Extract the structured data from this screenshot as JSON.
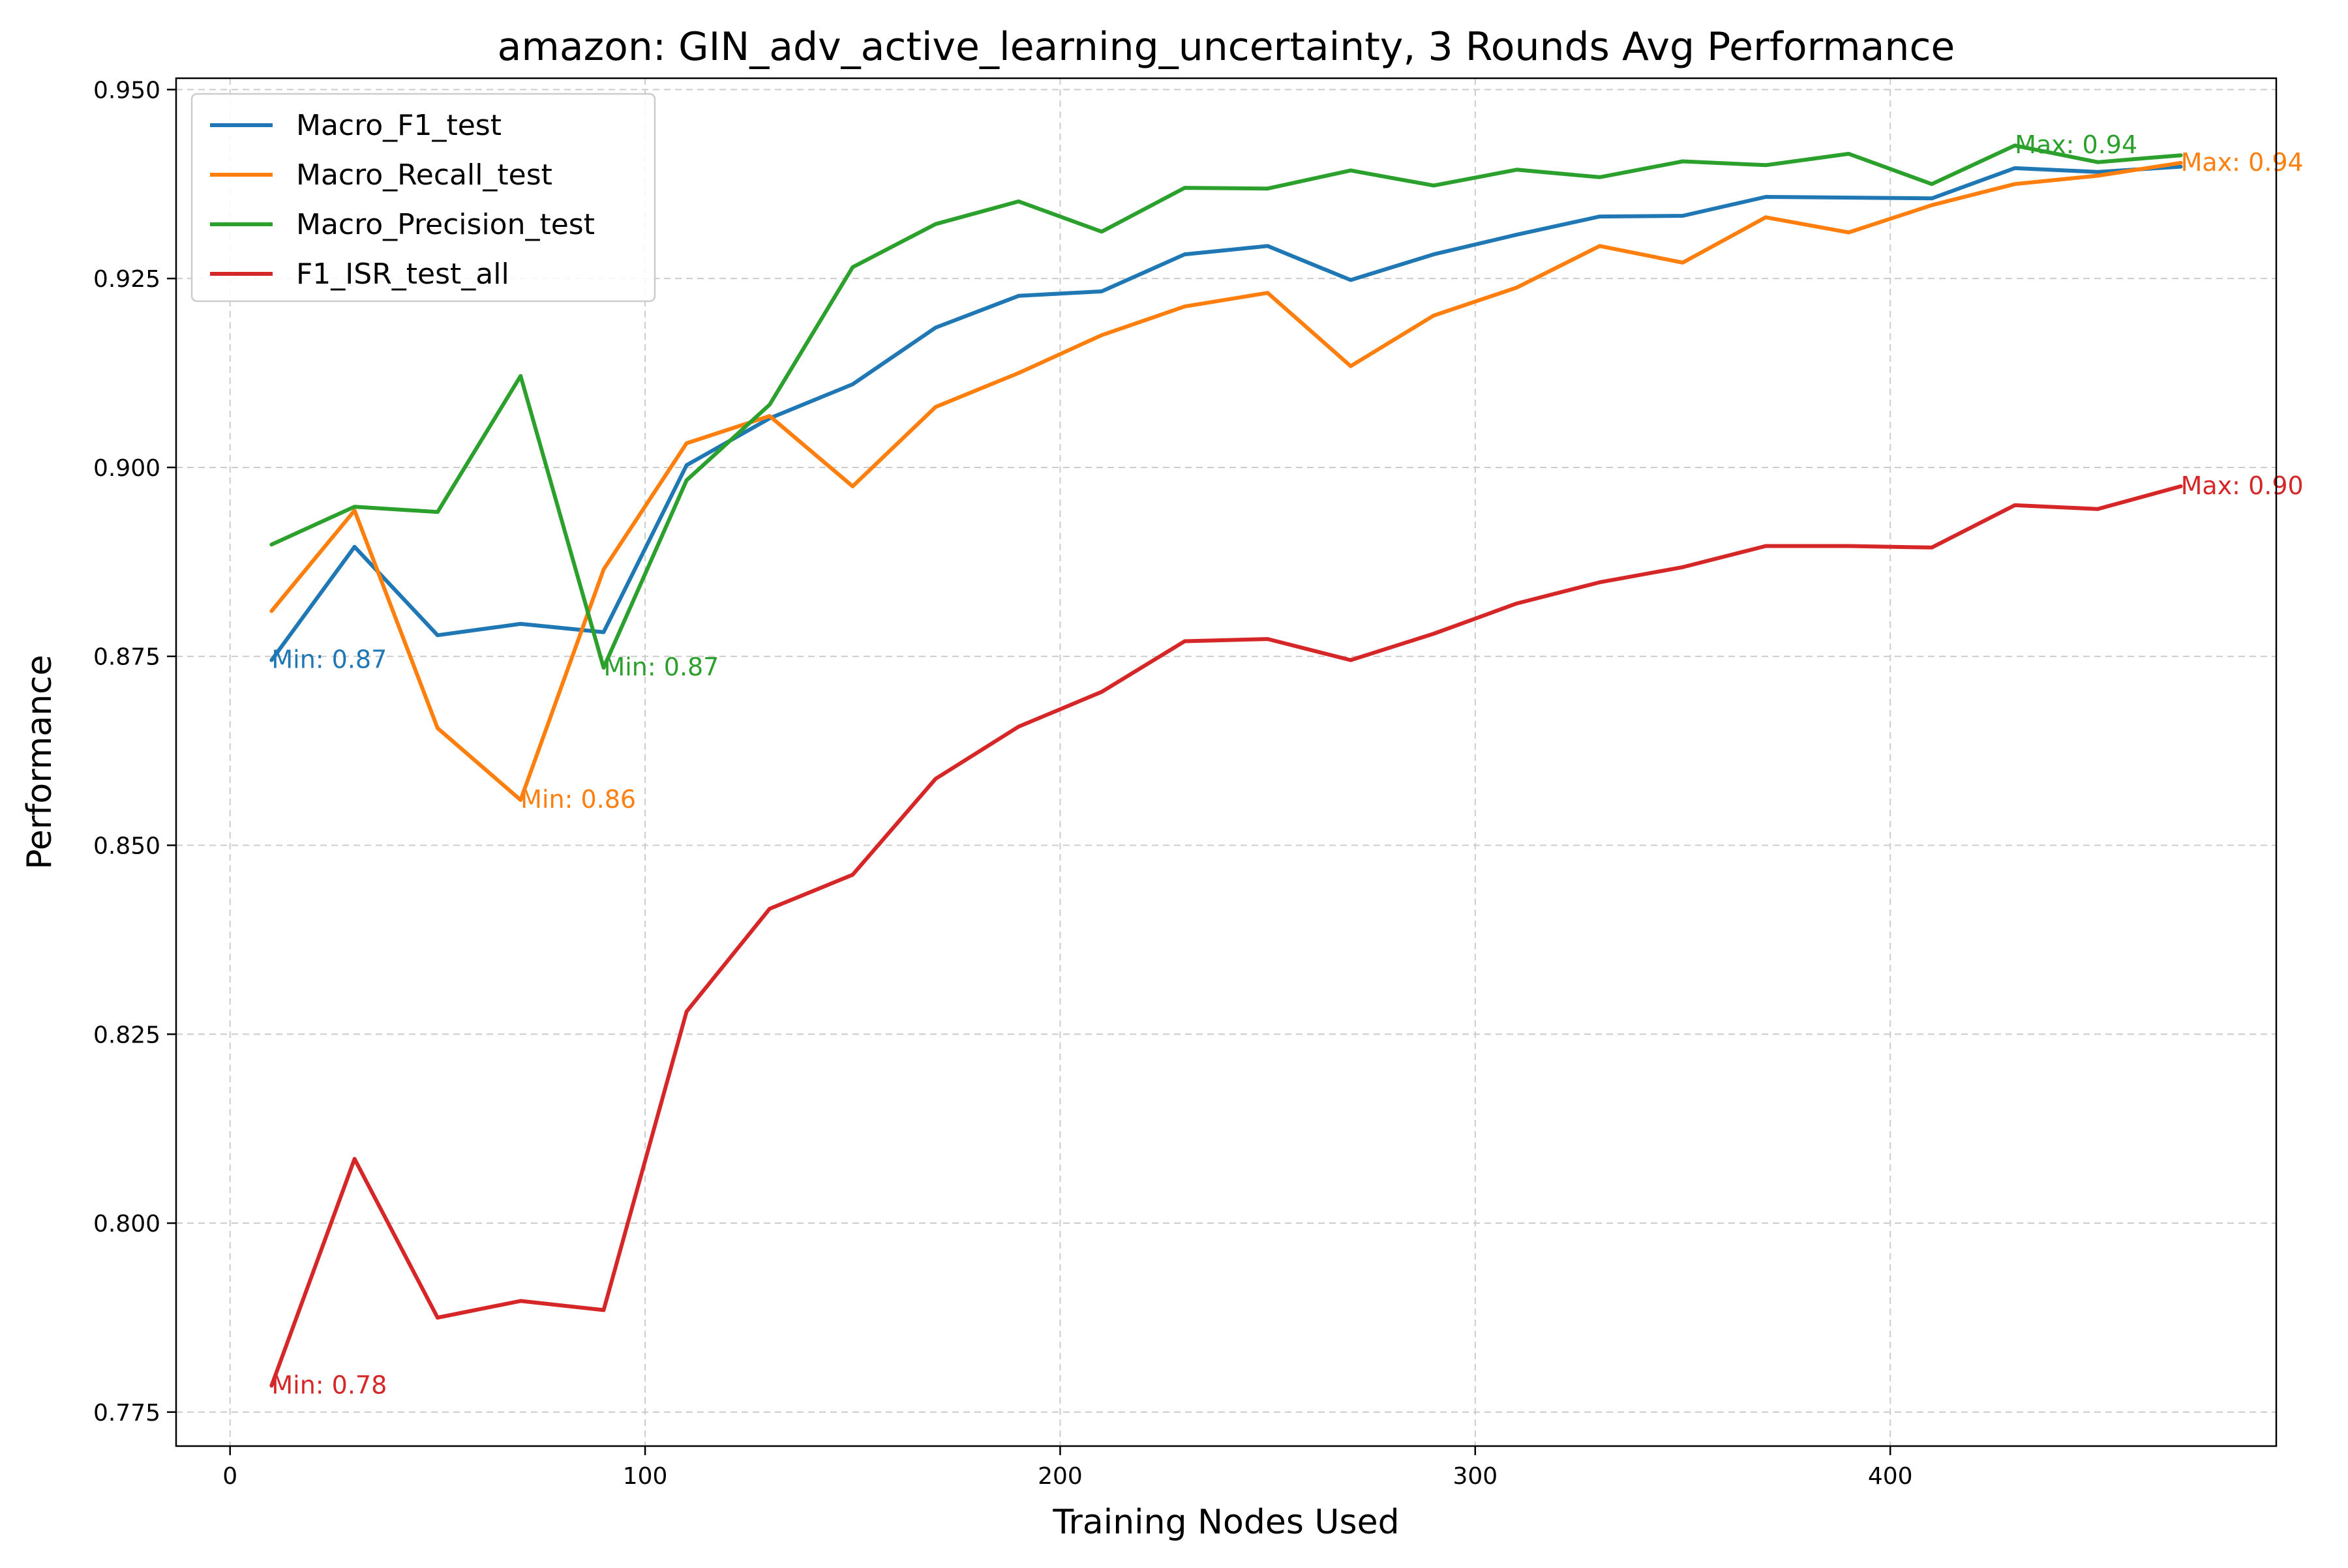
{
  "chart_data": {
    "type": "line",
    "title": "amazon: GIN_adv_active_learning_uncertainty, 3 Rounds Avg Performance",
    "xlabel": "Training Nodes Used",
    "ylabel": "Performance",
    "xlim": [
      -13,
      493
    ],
    "ylim": [
      0.7705,
      0.9515
    ],
    "xticks": [
      0,
      100,
      200,
      300,
      400
    ],
    "xtick_labels": [
      "0",
      "100",
      "200",
      "300",
      "400"
    ],
    "yticks": [
      0.775,
      0.8,
      0.825,
      0.85,
      0.875,
      0.9,
      0.925,
      0.95
    ],
    "ytick_labels": [
      "0.775",
      "0.800",
      "0.825",
      "0.850",
      "0.875",
      "0.900",
      "0.925",
      "0.950"
    ],
    "grid": true,
    "legend_position": "top-left",
    "x": [
      10,
      30,
      50,
      70,
      90,
      110,
      130,
      150,
      170,
      190,
      210,
      230,
      250,
      270,
      290,
      310,
      330,
      350,
      370,
      390,
      410,
      430,
      450,
      470
    ],
    "series": [
      {
        "name": "Macro_F1_test",
        "color": "#1f77b4",
        "values": [
          0.8745,
          0.8895,
          0.8778,
          0.8793,
          0.8782,
          0.9003,
          0.9065,
          0.911,
          0.9185,
          0.9227,
          0.9233,
          0.9282,
          0.9293,
          0.9248,
          0.9282,
          0.9308,
          0.9332,
          0.9333,
          0.9358,
          0.9357,
          0.9356,
          0.9396,
          0.9391,
          0.9398
        ]
      },
      {
        "name": "Macro_Recall_test",
        "color": "#ff7f0e",
        "values": [
          0.881,
          0.8943,
          0.8655,
          0.856,
          0.8865,
          0.9032,
          0.9068,
          0.8975,
          0.908,
          0.9125,
          0.9175,
          0.9213,
          0.9231,
          0.9134,
          0.9201,
          0.9238,
          0.9293,
          0.9271,
          0.9331,
          0.9311,
          0.9347,
          0.9375,
          0.9386,
          0.9403
        ]
      },
      {
        "name": "Macro_Precision_test",
        "color": "#2ca02c",
        "values": [
          0.8898,
          0.8948,
          0.8941,
          0.9121,
          0.8735,
          0.8983,
          0.9083,
          0.9265,
          0.9322,
          0.9352,
          0.9312,
          0.937,
          0.9369,
          0.9393,
          0.9373,
          0.9394,
          0.9384,
          0.9405,
          0.94,
          0.9415,
          0.9375,
          0.9426,
          0.9404,
          0.9413
        ]
      },
      {
        "name": "F1_ISR_test_all",
        "color": "#d62728",
        "values": [
          0.7785,
          0.8085,
          0.7875,
          0.7897,
          0.7885,
          0.828,
          0.8416,
          0.8461,
          0.8588,
          0.8657,
          0.8703,
          0.877,
          0.8773,
          0.8745,
          0.878,
          0.882,
          0.8848,
          0.8868,
          0.8896,
          0.8896,
          0.8894,
          0.895,
          0.8945,
          0.8975
        ]
      }
    ],
    "annotations": [
      {
        "text": "Min: 0.87",
        "x": 10,
        "y": 0.8745,
        "color": "#1f77b4"
      },
      {
        "text": "Min: 0.86",
        "x": 70,
        "y": 0.856,
        "color": "#ff7f0e"
      },
      {
        "text": "Min: 0.87",
        "x": 90,
        "y": 0.8735,
        "color": "#2ca02c"
      },
      {
        "text": "Min: 0.78",
        "x": 10,
        "y": 0.7785,
        "color": "#d62728"
      },
      {
        "text": "Max: 0.94",
        "x": 430,
        "y": 0.9426,
        "color": "#2ca02c"
      },
      {
        "text": "Max: 0.94",
        "x": 470,
        "y": 0.9403,
        "color": "#ff7f0e"
      },
      {
        "text": "Max: 0.90",
        "x": 470,
        "y": 0.8975,
        "color": "#d62728"
      }
    ]
  }
}
